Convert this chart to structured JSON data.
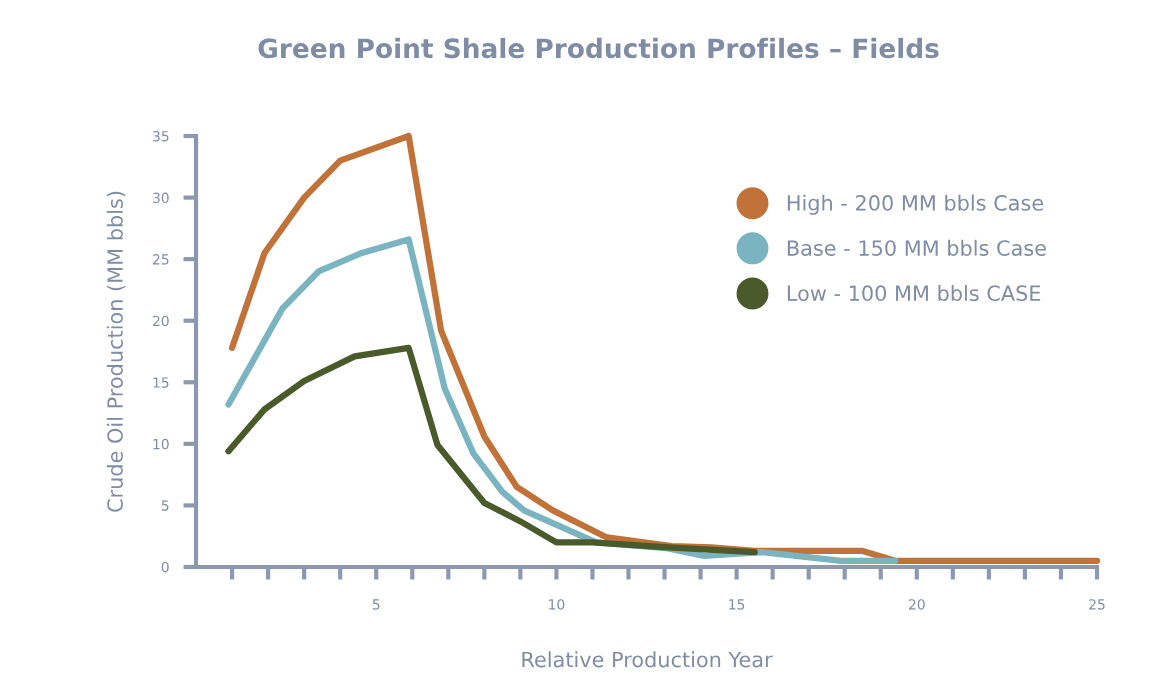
{
  "chart_data": {
    "type": "line",
    "title": "Green Point Shale Production Profiles – Fields",
    "xlabel": "Relative Production Year",
    "ylabel": "Crude Oil Production (MM bbls)",
    "xlim": [
      0,
      25
    ],
    "ylim": [
      0,
      35
    ],
    "xticks": [
      {
        "value": 1,
        "label": null
      },
      {
        "value": 2,
        "label": null
      },
      {
        "value": 3,
        "label": null
      },
      {
        "value": 4,
        "label": null
      },
      5,
      {
        "value": 6,
        "label": null
      },
      {
        "value": 7,
        "label": null
      },
      {
        "value": 8,
        "label": null
      },
      {
        "value": 9,
        "label": null
      },
      10,
      {
        "value": 11,
        "label": null
      },
      {
        "value": 12,
        "label": null
      },
      {
        "value": 13,
        "label": null
      },
      {
        "value": 14,
        "label": null
      },
      15,
      {
        "value": 16,
        "label": null
      },
      {
        "value": 17,
        "label": null
      },
      {
        "value": 18,
        "label": null
      },
      {
        "value": 19,
        "label": null
      },
      20,
      {
        "value": 21,
        "label": null
      },
      {
        "value": 22,
        "label": null
      },
      {
        "value": 23,
        "label": null
      },
      {
        "value": 24,
        "label": null
      },
      25
    ],
    "yticks": [
      0,
      5,
      10,
      15,
      20,
      25,
      30,
      35
    ],
    "grid": false,
    "legend": "top right",
    "marker": "none",
    "line_style": "solid",
    "series": [
      {
        "name": "High - 200 MM bbls Case",
        "color": "#c07238",
        "x": [
          1.0,
          1.9,
          3.0,
          4.0,
          5.9,
          6.8,
          8.0,
          8.9,
          9.9,
          11.4,
          13.2,
          14.3,
          15.5,
          18.5,
          19.4,
          25.0
        ],
        "values": [
          17.8,
          25.5,
          30.0,
          33.0,
          35.0,
          19.2,
          10.6,
          6.5,
          4.6,
          2.4,
          1.7,
          1.6,
          1.3,
          1.3,
          0.5,
          0.5
        ]
      },
      {
        "name": "Base - 150 MM bbls Case",
        "color": "#79b4c0",
        "x": [
          0.9,
          2.4,
          3.4,
          4.6,
          5.9,
          6.9,
          7.7,
          8.5,
          9.1,
          10.1,
          11.1,
          13.1,
          14.1,
          15.7,
          17.9,
          19.4
        ],
        "values": [
          13.2,
          21.0,
          24.0,
          25.5,
          26.6,
          14.5,
          9.2,
          6.1,
          4.6,
          3.3,
          2.0,
          1.5,
          0.9,
          1.2,
          0.5,
          0.5
        ]
      },
      {
        "name": "Low - 100 MM bbls CASE",
        "color": "#4a5a2b",
        "x": [
          0.9,
          1.9,
          3.0,
          4.4,
          5.9,
          6.7,
          8.0,
          9.0,
          10.0,
          11.0,
          13.1,
          15.5
        ],
        "values": [
          9.4,
          12.8,
          15.1,
          17.1,
          17.8,
          9.9,
          5.2,
          3.7,
          2.0,
          2.0,
          1.6,
          1.2
        ]
      }
    ]
  }
}
